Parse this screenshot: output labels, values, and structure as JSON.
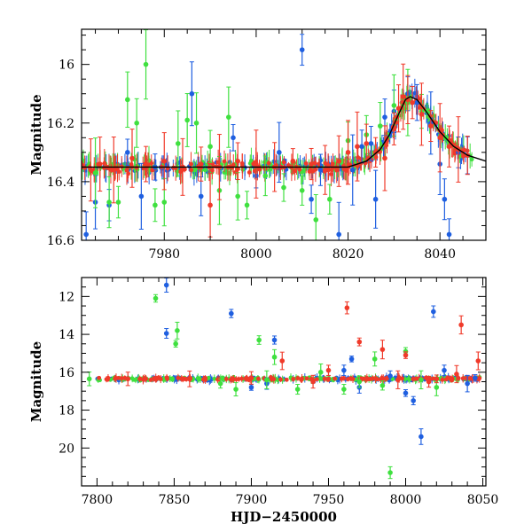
{
  "colors": {
    "blue": "#1f5fe0",
    "green": "#3fe03f",
    "red": "#f03a2a",
    "model": "#000000",
    "axis": "#000000"
  },
  "chart_data": [
    {
      "type": "scatter",
      "title": "",
      "xlabel": "",
      "ylabel": "Magnitude",
      "xlim": [
        7962,
        8050
      ],
      "ylim": [
        16.6,
        15.88
      ],
      "y_inverted": true,
      "xticks": [
        7980,
        8000,
        8020,
        8040
      ],
      "xtick_labels": [
        "7980",
        "8000",
        "8020",
        "8040"
      ],
      "yticks": [
        16.0,
        16.2,
        16.4,
        16.6
      ],
      "ytick_labels": [
        "16",
        "16.2",
        "16.4",
        "16.6"
      ],
      "grid": false,
      "baseline_mag": 16.35,
      "peak": {
        "x": 8033.5,
        "y": 16.11
      },
      "model_curve": [
        [
          7962,
          16.35
        ],
        [
          8020,
          16.35
        ],
        [
          8024,
          16.33
        ],
        [
          8027,
          16.29
        ],
        [
          8029,
          16.24
        ],
        [
          8031,
          16.17
        ],
        [
          8032.5,
          16.12
        ],
        [
          8033.5,
          16.11
        ],
        [
          8035,
          16.12
        ],
        [
          8037,
          16.16
        ],
        [
          8040,
          16.23
        ],
        [
          8043,
          16.28
        ],
        [
          8046,
          16.31
        ],
        [
          8050,
          16.33
        ]
      ],
      "series": [
        {
          "color": "blue",
          "points": [
            [
              7963,
              16.58
            ],
            [
              7965,
              16.47
            ],
            [
              7968,
              16.48
            ],
            [
              7972,
              16.3
            ],
            [
              7975,
              16.45
            ],
            [
              7978,
              16.35
            ],
            [
              7986,
              16.1
            ],
            [
              7988,
              16.45
            ],
            [
              7995,
              16.25
            ],
            [
              8000,
              16.38
            ],
            [
              8005,
              16.3
            ],
            [
              8010,
              15.95
            ],
            [
              8012,
              16.46
            ],
            [
              8014,
              16.36
            ],
            [
              8018,
              16.58
            ],
            [
              8021,
              16.36
            ],
            [
              8023,
              16.28
            ],
            [
              8025,
              16.27
            ],
            [
              8026,
              16.46
            ],
            [
              8028,
              16.18
            ],
            [
              8030,
              16.16
            ],
            [
              8033,
              16.1
            ],
            [
              8035,
              16.13
            ],
            [
              8038,
              16.2
            ],
            [
              8040,
              16.34
            ],
            [
              8041,
              16.46
            ],
            [
              8042,
              16.58
            ],
            [
              8044,
              16.3
            ],
            [
              8046,
              16.31
            ]
          ]
        },
        {
          "color": "green",
          "points": [
            [
              7965,
              16.37
            ],
            [
              7968,
              16.47
            ],
            [
              7970,
              16.47
            ],
            [
              7972,
              16.12
            ],
            [
              7974,
              16.2
            ],
            [
              7976,
              16.0
            ],
            [
              7978,
              16.48
            ],
            [
              7980,
              16.47
            ],
            [
              7983,
              16.27
            ],
            [
              7985,
              16.19
            ],
            [
              7987,
              16.2
            ],
            [
              7990,
              16.28
            ],
            [
              7992,
              16.43
            ],
            [
              7994,
              16.18
            ],
            [
              7996,
              16.45
            ],
            [
              7998,
              16.48
            ],
            [
              8002,
              16.38
            ],
            [
              8006,
              16.42
            ],
            [
              8010,
              16.43
            ],
            [
              8013,
              16.53
            ],
            [
              8016,
              16.46
            ],
            [
              8020,
              16.26
            ],
            [
              8024,
              16.24
            ],
            [
              8027,
              16.21
            ],
            [
              8030,
              16.14
            ],
            [
              8033,
              16.13
            ],
            [
              8036,
              16.16
            ]
          ]
        },
        {
          "color": "red",
          "points": [
            [
              7964,
              16.36
            ],
            [
              7966,
              16.34
            ],
            [
              7969,
              16.36
            ],
            [
              7973,
              16.32
            ],
            [
              7976,
              16.34
            ],
            [
              7980,
              16.33
            ],
            [
              7984,
              16.35
            ],
            [
              7988,
              16.34
            ],
            [
              7990,
              16.48
            ],
            [
              7992,
              16.35
            ],
            [
              7996,
              16.33
            ],
            [
              8000,
              16.34
            ],
            [
              8004,
              16.35
            ],
            [
              8008,
              16.33
            ],
            [
              8012,
              16.34
            ],
            [
              8015,
              16.36
            ],
            [
              8018,
              16.33
            ],
            [
              8020,
              16.3
            ],
            [
              8022,
              16.28
            ],
            [
              8024,
              16.27
            ],
            [
              8026,
              16.3
            ],
            [
              8028,
              16.32
            ],
            [
              8030,
              16.22
            ],
            [
              8031,
              16.15
            ],
            [
              8032,
              16.11
            ],
            [
              8033,
              16.12
            ],
            [
              8034,
              16.13
            ],
            [
              8036,
              16.17
            ],
            [
              8038,
              16.21
            ],
            [
              8040,
              16.25
            ],
            [
              8042,
              16.28
            ],
            [
              8044,
              16.29
            ],
            [
              8046,
              16.31
            ]
          ]
        }
      ]
    },
    {
      "type": "scatter",
      "title": "",
      "xlabel": "HJD−2450000",
      "ylabel": "Magnitude",
      "xlim": [
        7790,
        8052
      ],
      "ylim": [
        22,
        11
      ],
      "y_inverted": true,
      "xticks": [
        7800,
        7850,
        7900,
        7950,
        8000,
        8050
      ],
      "xtick_labels": [
        "7800",
        "7850",
        "7900",
        "7950",
        "8000",
        "8050"
      ],
      "yticks": [
        12,
        14,
        16,
        18,
        20
      ],
      "ytick_labels": [
        "12",
        "14",
        "16",
        "18",
        "20"
      ],
      "grid": false,
      "baseline_mag": 16.35,
      "series": [
        {
          "color": "blue",
          "points": [
            [
              7845,
              11.4
            ],
            [
              7845,
              13.95
            ],
            [
              7887,
              12.9
            ],
            [
              7900,
              16.8
            ],
            [
              7910,
              16.6
            ],
            [
              7915,
              14.3
            ],
            [
              7960,
              15.9
            ],
            [
              7965,
              15.3
            ],
            [
              7970,
              16.8
            ],
            [
              7990,
              16.2
            ],
            [
              8000,
              17.1
            ],
            [
              8005,
              17.5
            ],
            [
              8010,
              19.4
            ],
            [
              8018,
              12.8
            ],
            [
              8025,
              15.9
            ],
            [
              8040,
              16.6
            ],
            [
              8045,
              16.3
            ]
          ]
        },
        {
          "color": "green",
          "points": [
            [
              7795,
              16.35
            ],
            [
              7838,
              12.1
            ],
            [
              7852,
              13.8
            ],
            [
              7851,
              14.5
            ],
            [
              7880,
              16.6
            ],
            [
              7890,
              16.9
            ],
            [
              7905,
              14.3
            ],
            [
              7910,
              16.4
            ],
            [
              7915,
              15.2
            ],
            [
              7930,
              16.9
            ],
            [
              7945,
              16.0
            ],
            [
              7960,
              16.9
            ],
            [
              7970,
              16.5
            ],
            [
              7980,
              15.3
            ],
            [
              7985,
              16.7
            ],
            [
              7990,
              21.3
            ],
            [
              8000,
              14.9
            ],
            [
              8010,
              16.4
            ],
            [
              8020,
              16.8
            ]
          ]
        },
        {
          "color": "red",
          "points": [
            [
              7820,
              16.35
            ],
            [
              7860,
              16.35
            ],
            [
              7900,
              16.3
            ],
            [
              7920,
              15.4
            ],
            [
              7940,
              16.5
            ],
            [
              7950,
              15.9
            ],
            [
              7962,
              12.6
            ],
            [
              7970,
              14.4
            ],
            [
              7985,
              14.8
            ],
            [
              7995,
              16.4
            ],
            [
              8000,
              15.1
            ],
            [
              8015,
              16.5
            ],
            [
              8020,
              16.35
            ],
            [
              8033,
              16.1
            ],
            [
              8036,
              13.5
            ],
            [
              8047,
              15.4
            ]
          ]
        }
      ]
    }
  ]
}
